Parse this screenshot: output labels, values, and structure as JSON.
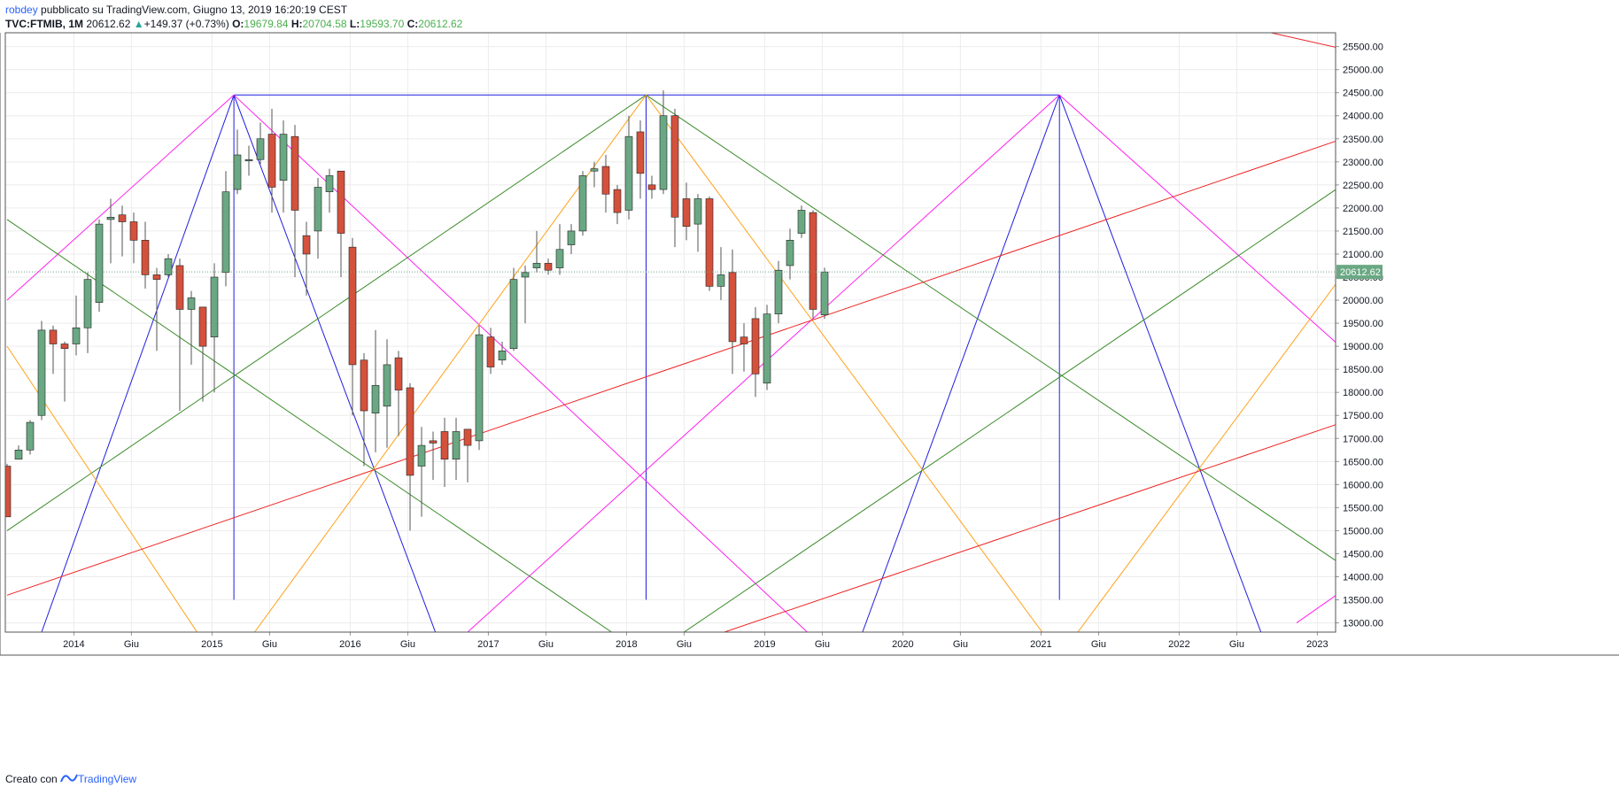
{
  "header": {
    "author": "robdey",
    "published_text": "pubblicato su TradingView.com, Giugno 13, 2019 16:20:19 CEST",
    "symbol_label": "TVC:FTMIB, 1M",
    "last_price": "20612.62",
    "change_text": "+149.37 (+0.73%)",
    "o_label": "O:",
    "o_value": "19679.84",
    "h_label": "H:",
    "h_value": "20704.58",
    "l_label": "L:",
    "l_value": "19593.70",
    "c_label": "C:",
    "c_value": "20612.62"
  },
  "footer": {
    "created_with": "Creato con",
    "brand": "TradingView"
  },
  "colors": {
    "up": "#6aa883",
    "down": "#d4513c",
    "blue": "#1f1fe0",
    "magenta": "#ff22ee",
    "green": "#3a8a2a",
    "orange": "#ffa11a",
    "red": "#ee2222",
    "price_label": "#6aa883"
  },
  "chart_data": {
    "type": "candlestick",
    "timeframe": "1M",
    "ylim": [
      12800,
      25800
    ],
    "xlim_months": [
      0,
      116
    ],
    "yticks": [
      13000,
      13500,
      14000,
      14500,
      15000,
      15500,
      16000,
      16500,
      17000,
      17500,
      18000,
      18500,
      19000,
      19500,
      20000,
      20500,
      21000,
      21500,
      22000,
      22500,
      23000,
      23500,
      24000,
      24500,
      25000,
      25500
    ],
    "ytick_labels": [
      "13000.00",
      "13500.00",
      "14000.00",
      "14500.00",
      "15000.00",
      "15500.00",
      "16000.00",
      "16500.00",
      "17000.00",
      "17500.00",
      "18000.00",
      "18500.00",
      "19000.00",
      "19500.00",
      "20000.00",
      "20500.00",
      "21000.00",
      "21500.00",
      "22000.00",
      "22500.00",
      "23000.00",
      "23500.00",
      "24000.00",
      "24500.00",
      "25000.00",
      "25500.00"
    ],
    "xticks": [
      {
        "m": 5.8,
        "label": "2014"
      },
      {
        "m": 10.8,
        "label": "Giu"
      },
      {
        "m": 17.8,
        "label": "2015"
      },
      {
        "m": 22.8,
        "label": "Giu"
      },
      {
        "m": 29.8,
        "label": "2016"
      },
      {
        "m": 34.8,
        "label": "Giu"
      },
      {
        "m": 41.8,
        "label": "2017"
      },
      {
        "m": 46.8,
        "label": "Giu"
      },
      {
        "m": 53.8,
        "label": "2018"
      },
      {
        "m": 58.8,
        "label": "Giu"
      },
      {
        "m": 65.8,
        "label": "2019"
      },
      {
        "m": 70.8,
        "label": "Giu"
      },
      {
        "m": 77.8,
        "label": "2020"
      },
      {
        "m": 82.8,
        "label": "Giu"
      },
      {
        "m": 89.8,
        "label": "2021"
      },
      {
        "m": 94.8,
        "label": "Giu"
      },
      {
        "m": 101.8,
        "label": "2022"
      },
      {
        "m": 106.8,
        "label": "Giu"
      },
      {
        "m": 113.8,
        "label": "2023"
      }
    ],
    "last_price_label": "20612.62",
    "last_price": 20612.62,
    "candles": [
      [
        16400,
        15300,
        16450,
        15300
      ],
      [
        16550,
        16750,
        16850,
        16550
      ],
      [
        16750,
        17350,
        17400,
        16650
      ],
      [
        17500,
        19350,
        19550,
        17400
      ],
      [
        19350,
        19050,
        19450,
        18400
      ],
      [
        19050,
        18950,
        19100,
        17800
      ],
      [
        19050,
        19400,
        20100,
        18800
      ],
      [
        19400,
        20450,
        20600,
        18850
      ],
      [
        19950,
        21650,
        21750,
        19750
      ],
      [
        21750,
        21800,
        22200,
        20800
      ],
      [
        21850,
        21700,
        22050,
        20950
      ],
      [
        21700,
        21300,
        21900,
        20800
      ],
      [
        21300,
        20550,
        21700,
        20250
      ],
      [
        20550,
        20450,
        20700,
        18900
      ],
      [
        20550,
        20900,
        21000,
        20500
      ],
      [
        20750,
        19800,
        20900,
        17600
      ],
      [
        19800,
        20050,
        20200,
        18600
      ],
      [
        19850,
        19000,
        19850,
        17800
      ],
      [
        19200,
        20500,
        20800,
        18000
      ],
      [
        20600,
        22350,
        22800,
        20300
      ],
      [
        22400,
        23150,
        23700,
        22300
      ],
      [
        23050,
        23050,
        23350,
        22700
      ],
      [
        23050,
        23500,
        23850,
        22950
      ],
      [
        23600,
        22450,
        24150,
        21900
      ],
      [
        22600,
        23600,
        23900,
        21900
      ],
      [
        23550,
        21950,
        23800,
        20500
      ],
      [
        21400,
        21000,
        21700,
        20100
      ],
      [
        21500,
        22450,
        22650,
        20900
      ],
      [
        22350,
        22700,
        22850,
        21900
      ],
      [
        22800,
        21450,
        22800,
        20500
      ],
      [
        21150,
        18600,
        21350,
        17500
      ],
      [
        18700,
        17600,
        18850,
        16400
      ],
      [
        17550,
        18150,
        19350,
        16700
      ],
      [
        17700,
        18600,
        19150,
        16800
      ],
      [
        18750,
        18050,
        18900,
        17050
      ],
      [
        18100,
        16200,
        18200,
        15000
      ],
      [
        16400,
        16850,
        17250,
        15300
      ],
      [
        16950,
        16900,
        17150,
        16100
      ],
      [
        17150,
        16550,
        17450,
        15950
      ],
      [
        16550,
        17150,
        17450,
        16100
      ],
      [
        17200,
        16850,
        17200,
        16050
      ],
      [
        16950,
        19250,
        19450,
        16750
      ],
      [
        19200,
        18550,
        19400,
        18400
      ],
      [
        18700,
        18900,
        19100,
        18600
      ],
      [
        18950,
        20450,
        20700,
        18900
      ],
      [
        20500,
        20600,
        20750,
        19500
      ],
      [
        20700,
        20800,
        21500,
        20600
      ],
      [
        20800,
        20650,
        20900,
        20550
      ],
      [
        20700,
        21100,
        21650,
        20550
      ],
      [
        21200,
        21500,
        21650,
        21000
      ],
      [
        21500,
        22700,
        22800,
        21400
      ],
      [
        22800,
        22850,
        23000,
        22450
      ],
      [
        22900,
        22300,
        23150,
        21900
      ],
      [
        22400,
        21900,
        22500,
        21650
      ],
      [
        21950,
        23550,
        24000,
        21750
      ],
      [
        23650,
        22750,
        23900,
        22200
      ],
      [
        22500,
        22400,
        22700,
        22200
      ],
      [
        22400,
        24000,
        24550,
        22300
      ],
      [
        24000,
        21800,
        24150,
        21150
      ],
      [
        22200,
        21600,
        22550,
        21300
      ],
      [
        21650,
        22200,
        22300,
        21050
      ],
      [
        22200,
        20300,
        22250,
        20200
      ],
      [
        20300,
        20550,
        21150,
        20000
      ],
      [
        20600,
        19100,
        21100,
        18400
      ],
      [
        19200,
        19050,
        19500,
        18450
      ],
      [
        19600,
        18400,
        19850,
        17900
      ],
      [
        18200,
        19700,
        19900,
        18050
      ],
      [
        19700,
        20650,
        20850,
        19500
      ],
      [
        20750,
        21300,
        21550,
        20450
      ],
      [
        21450,
        21950,
        22050,
        21350
      ],
      [
        21900,
        19800,
        21950,
        19600
      ],
      [
        19680,
        20612,
        20705,
        19594
      ]
    ],
    "lines": [
      {
        "color": "blue",
        "p1": [
          19.7,
          24450
        ],
        "p2": [
          91.4,
          24450
        ]
      },
      {
        "color": "blue",
        "p1": [
          19.7,
          24450
        ],
        "p2": [
          19.7,
          13500
        ]
      },
      {
        "color": "blue",
        "p1": [
          55.5,
          24450
        ],
        "p2": [
          55.5,
          13500
        ]
      },
      {
        "color": "blue",
        "p1": [
          91.4,
          24450
        ],
        "p2": [
          91.4,
          13500
        ]
      },
      {
        "color": "blue",
        "p1": [
          19.7,
          24450
        ],
        "p2": [
          37.2,
          12800
        ]
      },
      {
        "color": "blue",
        "p1": [
          19.7,
          24450
        ],
        "p2": [
          3.0,
          12800
        ]
      },
      {
        "color": "blue",
        "p1": [
          91.4,
          24450
        ],
        "p2": [
          108.9,
          12800
        ]
      },
      {
        "color": "blue",
        "p1": [
          91.4,
          24450
        ],
        "p2": [
          74.3,
          12800
        ]
      },
      {
        "color": "magenta",
        "p1": [
          19.7,
          24450
        ],
        "p2": [
          69.5,
          12800
        ]
      },
      {
        "color": "magenta",
        "p1": [
          19.7,
          24450
        ],
        "p2": [
          0,
          20000
        ]
      },
      {
        "color": "magenta",
        "p1": [
          91.4,
          24450
        ],
        "p2": [
          116,
          18950
        ]
      },
      {
        "color": "magenta",
        "p1": [
          91.4,
          24450
        ],
        "p2": [
          40.0,
          12800
        ]
      },
      {
        "color": "magenta",
        "p1": [
          116,
          13700
        ],
        "p2": [
          112,
          13000
        ]
      },
      {
        "color": "green",
        "p1": [
          55.5,
          24450
        ],
        "p2": [
          116,
          14250
        ]
      },
      {
        "color": "green",
        "p1": [
          55.5,
          24450
        ],
        "p2": [
          0,
          15000
        ]
      },
      {
        "color": "green",
        "p1": [
          0,
          21750
        ],
        "p2": [
          52.5,
          12800
        ]
      },
      {
        "color": "green",
        "p1": [
          58.8,
          12800
        ],
        "p2": [
          116,
          22500
        ]
      },
      {
        "color": "orange",
        "p1": [
          55.5,
          24450
        ],
        "p2": [
          89.9,
          12800
        ]
      },
      {
        "color": "orange",
        "p1": [
          55.5,
          24450
        ],
        "p2": [
          21.5,
          12800
        ]
      },
      {
        "color": "orange",
        "p1": [
          0,
          19000
        ],
        "p2": [
          16.5,
          12800
        ]
      },
      {
        "color": "orange",
        "p1": [
          93.0,
          12800
        ],
        "p2": [
          116,
          20550
        ]
      },
      {
        "color": "red",
        "p1": [
          0,
          13600
        ],
        "p2": [
          116,
          23500
        ]
      },
      {
        "color": "red",
        "p1": [
          62.3,
          12800
        ],
        "p2": [
          116,
          17350
        ]
      },
      {
        "color": "red",
        "p1": [
          108,
          25900
        ],
        "p2": [
          116,
          25450
        ]
      }
    ]
  }
}
